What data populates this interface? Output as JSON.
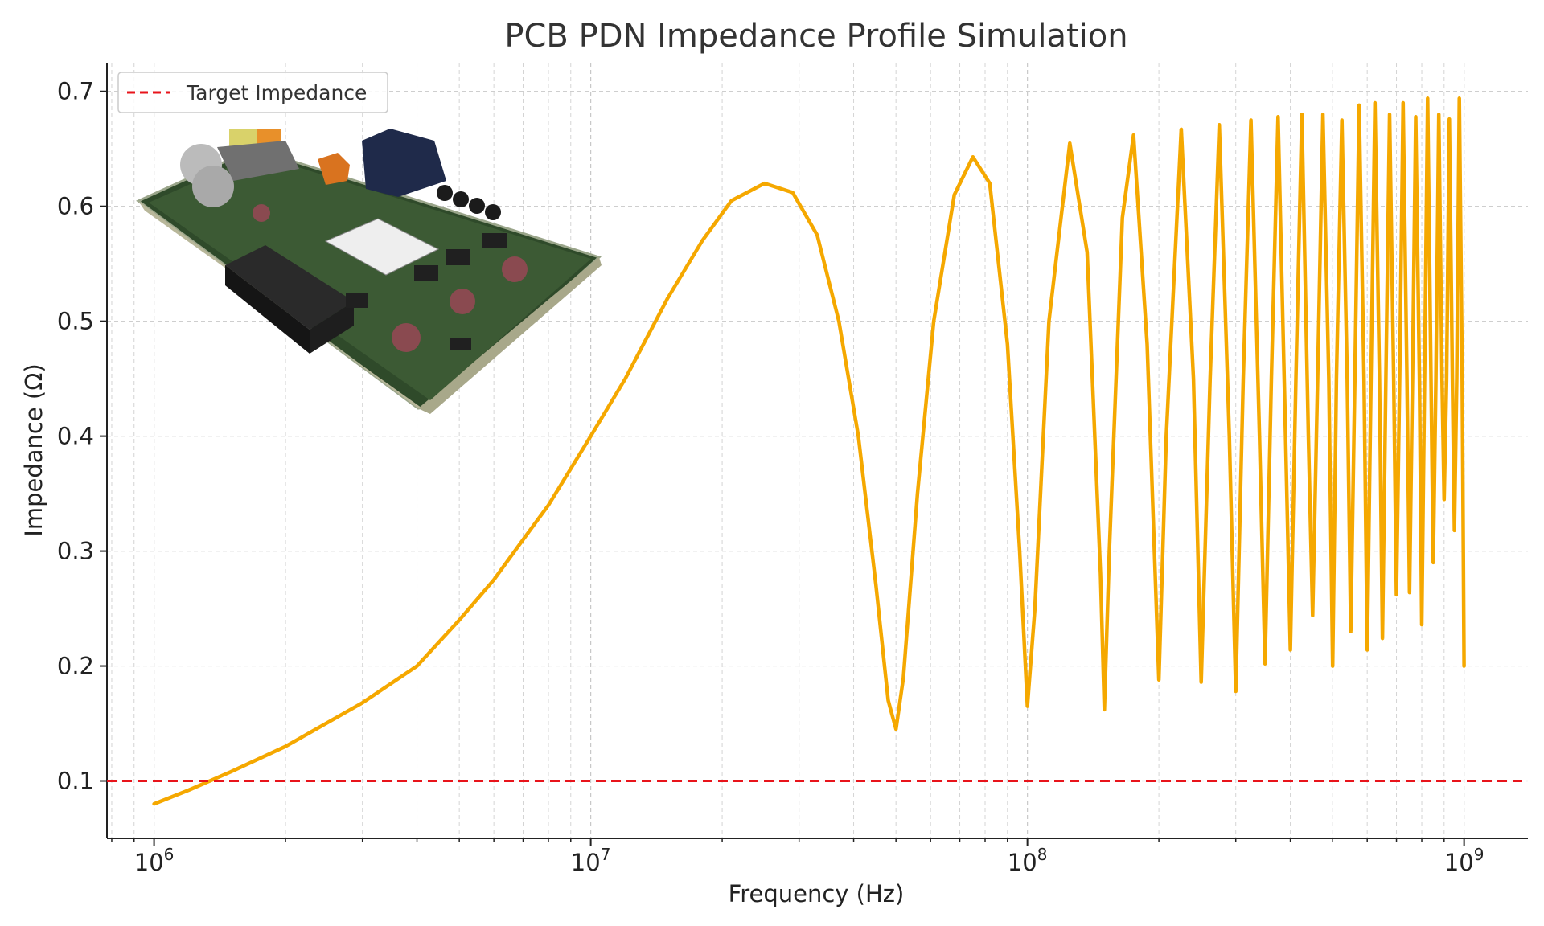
{
  "chart_data": {
    "type": "line",
    "title": "PCB PDN Impedance Profile Simulation",
    "xlabel": "Frequency (Hz)",
    "ylabel": "Impedance (Ω)",
    "xscale": "log",
    "xlim": [
      780000,
      1400000000
    ],
    "ylim": [
      0.05,
      0.725
    ],
    "xticks": [
      {
        "value": 1000000,
        "base": "10",
        "exp": "6"
      },
      {
        "value": 10000000,
        "base": "10",
        "exp": "7"
      },
      {
        "value": 100000000,
        "base": "10",
        "exp": "8"
      },
      {
        "value": 1000000000,
        "base": "10",
        "exp": "9"
      }
    ],
    "yticks": [
      {
        "value": 0.1,
        "label": "0.1"
      },
      {
        "value": 0.2,
        "label": "0.2"
      },
      {
        "value": 0.3,
        "label": "0.3"
      },
      {
        "value": 0.4,
        "label": "0.4"
      },
      {
        "value": 0.5,
        "label": "0.5"
      },
      {
        "value": 0.6,
        "label": "0.6"
      },
      {
        "value": 0.7,
        "label": "0.7"
      }
    ],
    "grid": true,
    "legend_position": "top-left",
    "series": [
      {
        "color": "#F5A800",
        "style": "solid",
        "points": [
          [
            1000000,
            0.08
          ],
          [
            1200000,
            0.092
          ],
          [
            1500000,
            0.108
          ],
          [
            2000000,
            0.13
          ],
          [
            3000000,
            0.168
          ],
          [
            4000000,
            0.2
          ],
          [
            5000000,
            0.24
          ],
          [
            6000000,
            0.275
          ],
          [
            7000000,
            0.31
          ],
          [
            8000000,
            0.34
          ],
          [
            10000000,
            0.4
          ],
          [
            12000000,
            0.45
          ],
          [
            15000000,
            0.52
          ],
          [
            18000000,
            0.57
          ],
          [
            21000000,
            0.605
          ],
          [
            25000000,
            0.62
          ],
          [
            29000000,
            0.612
          ],
          [
            33000000,
            0.575
          ],
          [
            37000000,
            0.5
          ],
          [
            41000000,
            0.4
          ],
          [
            45000000,
            0.27
          ],
          [
            48000000,
            0.17
          ],
          [
            50000000,
            0.145
          ],
          [
            52000000,
            0.19
          ],
          [
            56000000,
            0.35
          ],
          [
            61000000,
            0.5
          ],
          [
            68000000,
            0.61
          ],
          [
            75000000,
            0.643
          ],
          [
            82000000,
            0.62
          ],
          [
            90000000,
            0.48
          ],
          [
            96000000,
            0.3
          ],
          [
            100000000,
            0.165
          ],
          [
            104000000,
            0.25
          ],
          [
            112000000,
            0.5
          ],
          [
            125000000,
            0.655
          ],
          [
            137000000,
            0.56
          ],
          [
            147000000,
            0.28
          ],
          [
            150000000,
            0.162
          ],
          [
            154000000,
            0.3
          ],
          [
            165000000,
            0.59
          ],
          [
            175000000,
            0.662
          ],
          [
            188000000,
            0.48
          ],
          [
            200000000,
            0.188
          ],
          [
            208000000,
            0.4
          ],
          [
            225000000,
            0.667
          ],
          [
            240000000,
            0.45
          ],
          [
            250000000,
            0.186
          ],
          [
            262000000,
            0.45
          ],
          [
            275000000,
            0.671
          ],
          [
            290000000,
            0.4
          ],
          [
            300000000,
            0.178
          ],
          [
            312000000,
            0.45
          ],
          [
            325000000,
            0.675
          ],
          [
            340000000,
            0.4
          ],
          [
            350000000,
            0.202
          ],
          [
            362000000,
            0.45
          ],
          [
            375000000,
            0.678
          ],
          [
            390000000,
            0.4
          ],
          [
            400000000,
            0.214
          ],
          [
            412000000,
            0.45
          ],
          [
            425000000,
            0.68
          ],
          [
            440000000,
            0.4
          ],
          [
            450000000,
            0.244
          ],
          [
            462000000,
            0.45
          ],
          [
            475000000,
            0.68
          ],
          [
            490000000,
            0.45
          ],
          [
            500000000,
            0.2
          ],
          [
            510000000,
            0.45
          ],
          [
            525000000,
            0.675
          ],
          [
            540000000,
            0.45
          ],
          [
            550000000,
            0.23
          ],
          [
            562000000,
            0.45
          ],
          [
            575000000,
            0.688
          ],
          [
            590000000,
            0.45
          ],
          [
            600000000,
            0.214
          ],
          [
            612000000,
            0.45
          ],
          [
            625000000,
            0.69
          ],
          [
            640000000,
            0.45
          ],
          [
            650000000,
            0.224
          ],
          [
            662000000,
            0.45
          ],
          [
            675000000,
            0.68
          ],
          [
            690000000,
            0.45
          ],
          [
            700000000,
            0.262
          ],
          [
            712000000,
            0.45
          ],
          [
            725000000,
            0.69
          ],
          [
            740000000,
            0.45
          ],
          [
            750000000,
            0.264
          ],
          [
            762000000,
            0.45
          ],
          [
            775000000,
            0.678
          ],
          [
            790000000,
            0.45
          ],
          [
            800000000,
            0.236
          ],
          [
            812000000,
            0.45
          ],
          [
            825000000,
            0.694
          ],
          [
            840000000,
            0.45
          ],
          [
            850000000,
            0.29
          ],
          [
            862000000,
            0.45
          ],
          [
            875000000,
            0.68
          ],
          [
            890000000,
            0.45
          ],
          [
            900000000,
            0.345
          ],
          [
            912000000,
            0.45
          ],
          [
            925000000,
            0.676
          ],
          [
            940000000,
            0.45
          ],
          [
            950000000,
            0.318
          ],
          [
            962000000,
            0.45
          ],
          [
            975000000,
            0.694
          ],
          [
            990000000,
            0.45
          ],
          [
            1000000000,
            0.2
          ]
        ]
      },
      {
        "name": "Target Impedance",
        "color": "#E8141B",
        "style": "dashed",
        "points": [
          [
            780000,
            0.1
          ],
          [
            1400000000,
            0.1
          ]
        ]
      }
    ]
  },
  "inset_image": {
    "description_icon": "pcb-board-3d-render-icon"
  }
}
